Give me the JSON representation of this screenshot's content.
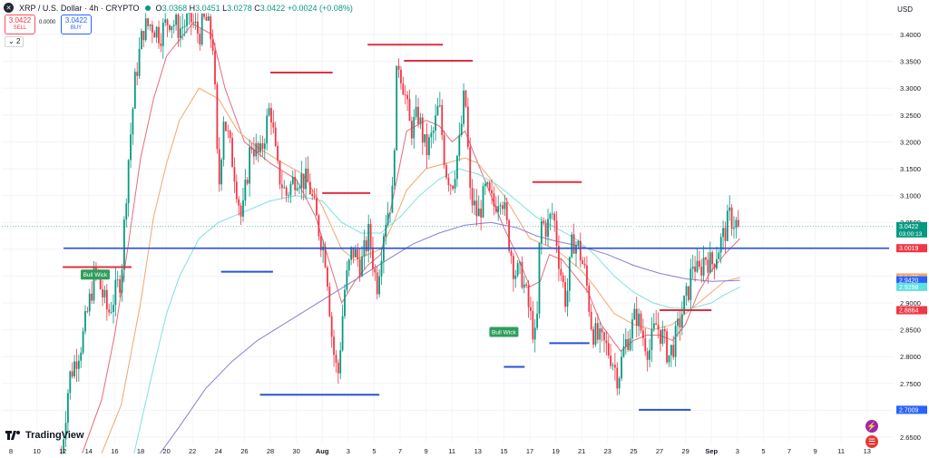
{
  "header": {
    "symbol_icon": "xrp-icon",
    "title": "XRP / U.S. Dollar · 4h · CRYPTO",
    "open_label": "O",
    "open": "3.0368",
    "high_label": "H",
    "high": "3.0451",
    "low_label": "L",
    "low": "3.0278",
    "close_label": "C",
    "close": "3.0422",
    "change": "+0.0024 (+0.08%)"
  },
  "trade": {
    "sell_price": "3.0422",
    "sell_label": "SELL",
    "spread": "0.0000",
    "buy_price": "3.0422",
    "buy_label": "BUY"
  },
  "indicators_toggle": "2",
  "currency": "USD",
  "logo_text": "TradingView",
  "colors": {
    "up": "#089981",
    "down": "#f23645",
    "resistance": "#e03040",
    "support": "#2a52d6",
    "ma_red": "#e56b7c",
    "ma_orange": "#f0a870",
    "ma_cyan": "#7fe0e0",
    "ma_purple": "#8c7fd0"
  },
  "chart_data": {
    "type": "candlestick",
    "symbol": "XRP / U.S. Dollar",
    "interval": "4h",
    "ylim": [
      2.62,
      3.44
    ],
    "y_ticks": [
      "3.4000",
      "3.3500",
      "3.3000",
      "3.2500",
      "3.2000",
      "3.1500",
      "3.1000",
      "3.0500",
      "3.0000",
      "2.9500",
      "2.9000",
      "2.8500",
      "2.8000",
      "2.7500",
      "2.7000",
      "2.6500"
    ],
    "x_ticks": [
      "8",
      "10",
      "12",
      "14",
      "16",
      "18",
      "20",
      "22",
      "24",
      "26",
      "28",
      "30",
      "Aug",
      "3",
      "5",
      "7",
      "9",
      "11",
      "13",
      "15",
      "17",
      "19",
      "21",
      "23",
      "25",
      "27",
      "29",
      "Sep",
      "3",
      "5",
      "7",
      "9",
      "11",
      "13"
    ],
    "price_labels": [
      {
        "value": "3.0422",
        "sub": "03:00:13",
        "color": "#089981",
        "price": 3.0422
      },
      {
        "value": "3.0019",
        "color": "#f23645",
        "price": 3.0019
      },
      {
        "value": "2.9475",
        "color": "#f0a870",
        "price": 2.9475
      },
      {
        "value": "2.9420",
        "color": "#2962ff",
        "price": 2.942
      },
      {
        "value": "2.9298",
        "color": "#5ee0e0",
        "price": 2.9298
      },
      {
        "value": "2.8864",
        "color": "#f23645",
        "price": 2.8864
      },
      {
        "value": "2.7009",
        "color": "#2962ff",
        "price": 2.7009
      }
    ],
    "annotations": [
      {
        "text": "Bull Wick",
        "day": 14.5,
        "price": 2.952
      },
      {
        "text": "Bull Wick",
        "day": 46.0,
        "price": 2.845
      }
    ],
    "horizontal_levels": [
      {
        "price": 3.0019,
        "from_day": 12,
        "to_day": 45.8,
        "kind": "support-main"
      },
      {
        "price": 2.9667,
        "from_day": 12,
        "to_day": 17.3,
        "kind": "resistance"
      },
      {
        "price": 3.329,
        "from_day": 28,
        "to_day": 32.8,
        "kind": "resistance"
      },
      {
        "price": 3.1045,
        "from_day": 32,
        "to_day": 35.7,
        "kind": "resistance"
      },
      {
        "price": 3.381,
        "from_day": 35.5,
        "to_day": 41.3,
        "kind": "resistance"
      },
      {
        "price": 3.351,
        "from_day": 38.3,
        "to_day": 43.6,
        "kind": "resistance"
      },
      {
        "price": 3.125,
        "from_day": 48.2,
        "to_day": 52.0,
        "kind": "resistance"
      },
      {
        "price": 2.8864,
        "from_day": 58.0,
        "to_day": 62.0,
        "kind": "resistance"
      },
      {
        "price": 2.958,
        "from_day": 24.2,
        "to_day": 28.2,
        "kind": "support"
      },
      {
        "price": 2.729,
        "from_day": 27.2,
        "to_day": 36.4,
        "kind": "support"
      },
      {
        "price": 2.781,
        "from_day": 46.0,
        "to_day": 47.6,
        "kind": "support"
      },
      {
        "price": 2.825,
        "from_day": 49.5,
        "to_day": 52.6,
        "kind": "support"
      },
      {
        "price": 2.7009,
        "from_day": 56.4,
        "to_day": 60.4,
        "kind": "support"
      }
    ],
    "close_path": [
      [
        11.9,
        2.62
      ],
      [
        12.5,
        2.76
      ],
      [
        13.5,
        2.83
      ],
      [
        14.5,
        2.96
      ],
      [
        15.5,
        2.88
      ],
      [
        16.5,
        2.95
      ],
      [
        17.0,
        3.15
      ],
      [
        17.6,
        3.32
      ],
      [
        18.2,
        3.41
      ],
      [
        18.8,
        3.42
      ],
      [
        19.5,
        3.4
      ],
      [
        20.2,
        3.43
      ],
      [
        21.0,
        3.41
      ],
      [
        21.8,
        3.43
      ],
      [
        22.5,
        3.4
      ],
      [
        23.0,
        3.43
      ],
      [
        23.6,
        3.38
      ],
      [
        24.0,
        3.1
      ],
      [
        24.4,
        3.25
      ],
      [
        25.2,
        3.15
      ],
      [
        25.8,
        3.05
      ],
      [
        26.5,
        3.2
      ],
      [
        27.2,
        3.17
      ],
      [
        28.0,
        3.27
      ],
      [
        28.5,
        3.15
      ],
      [
        29.2,
        3.1
      ],
      [
        30.0,
        3.14
      ],
      [
        31.0,
        3.12
      ],
      [
        31.6,
        3.05
      ],
      [
        32.3,
        2.98
      ],
      [
        32.8,
        2.82
      ],
      [
        33.2,
        2.76
      ],
      [
        33.7,
        2.92
      ],
      [
        34.3,
        3.0
      ],
      [
        35.0,
        2.97
      ],
      [
        35.6,
        3.03
      ],
      [
        36.2,
        2.93
      ],
      [
        36.8,
        3.05
      ],
      [
        37.4,
        3.1
      ],
      [
        37.8,
        3.36
      ],
      [
        38.3,
        3.3
      ],
      [
        38.8,
        3.22
      ],
      [
        39.4,
        3.25
      ],
      [
        40.0,
        3.18
      ],
      [
        40.6,
        3.22
      ],
      [
        41.0,
        3.27
      ],
      [
        41.5,
        3.15
      ],
      [
        42.0,
        3.12
      ],
      [
        42.6,
        3.2
      ],
      [
        43.0,
        3.3
      ],
      [
        43.4,
        3.1
      ],
      [
        44.0,
        3.06
      ],
      [
        44.6,
        3.11
      ],
      [
        45.2,
        3.08
      ],
      [
        45.8,
        3.11
      ],
      [
        46.3,
        3.03
      ],
      [
        46.8,
        2.96
      ],
      [
        47.4,
        2.95
      ],
      [
        48.0,
        2.88
      ],
      [
        48.5,
        2.82
      ],
      [
        48.8,
        3.05
      ],
      [
        49.3,
        3.04
      ],
      [
        49.8,
        3.07
      ],
      [
        50.3,
        2.97
      ],
      [
        50.8,
        2.9
      ],
      [
        51.3,
        3.02
      ],
      [
        51.8,
        3.0
      ],
      [
        52.3,
        2.95
      ],
      [
        52.8,
        2.85
      ],
      [
        53.3,
        2.83
      ],
      [
        53.8,
        2.82
      ],
      [
        54.3,
        2.8
      ],
      [
        54.8,
        2.76
      ],
      [
        55.3,
        2.82
      ],
      [
        55.8,
        2.85
      ],
      [
        56.2,
        2.88
      ],
      [
        56.7,
        2.84
      ],
      [
        57.2,
        2.81
      ],
      [
        57.7,
        2.86
      ],
      [
        58.2,
        2.84
      ],
      [
        58.7,
        2.8
      ],
      [
        59.2,
        2.83
      ],
      [
        59.7,
        2.88
      ],
      [
        60.2,
        2.92
      ],
      [
        60.6,
        2.98
      ],
      [
        61.0,
        2.95
      ],
      [
        61.5,
        2.99
      ],
      [
        62.0,
        2.97
      ],
      [
        62.5,
        3.0
      ],
      [
        63.0,
        3.03
      ],
      [
        63.4,
        3.06
      ],
      [
        63.8,
        3.05
      ],
      [
        64.2,
        3.0422
      ]
    ],
    "ma_series": [
      {
        "key": "ma_red",
        "points": [
          [
            13.5,
            2.62
          ],
          [
            15,
            2.72
          ],
          [
            16,
            2.84
          ],
          [
            17,
            3.0
          ],
          [
            18,
            3.17
          ],
          [
            19,
            3.28
          ],
          [
            20,
            3.36
          ],
          [
            22,
            3.42
          ],
          [
            23.5,
            3.4
          ],
          [
            24.5,
            3.3
          ],
          [
            26,
            3.2
          ],
          [
            28,
            3.16
          ],
          [
            30,
            3.13
          ],
          [
            31.5,
            3.06
          ],
          [
            32.5,
            2.98
          ],
          [
            33.5,
            2.9
          ],
          [
            34.5,
            2.94
          ],
          [
            35.5,
            2.97
          ],
          [
            36.5,
            2.99
          ],
          [
            37.5,
            3.1
          ],
          [
            38.5,
            3.22
          ],
          [
            40,
            3.24
          ],
          [
            41,
            3.23
          ],
          [
            42,
            3.2
          ],
          [
            43,
            3.22
          ],
          [
            44,
            3.16
          ],
          [
            45,
            3.1
          ],
          [
            46,
            3.04
          ],
          [
            47,
            2.99
          ],
          [
            48,
            2.93
          ],
          [
            48.8,
            2.94
          ],
          [
            49.5,
            2.99
          ],
          [
            50.5,
            2.98
          ],
          [
            51.5,
            2.95
          ],
          [
            52.5,
            2.92
          ],
          [
            53.5,
            2.86
          ],
          [
            55,
            2.81
          ],
          [
            56,
            2.83
          ],
          [
            57,
            2.84
          ],
          [
            58,
            2.84
          ],
          [
            59,
            2.83
          ],
          [
            60,
            2.86
          ],
          [
            61,
            2.92
          ],
          [
            62,
            2.96
          ],
          [
            63,
            2.99
          ],
          [
            64.2,
            3.02
          ]
        ]
      },
      {
        "key": "ma_orange",
        "points": [
          [
            15,
            2.62
          ],
          [
            16.5,
            2.71
          ],
          [
            18,
            2.9
          ],
          [
            19,
            3.06
          ],
          [
            20,
            3.16
          ],
          [
            21,
            3.24
          ],
          [
            22.5,
            3.3
          ],
          [
            24,
            3.28
          ],
          [
            25.5,
            3.22
          ],
          [
            27,
            3.19
          ],
          [
            29,
            3.16
          ],
          [
            30.5,
            3.14
          ],
          [
            32,
            3.08
          ],
          [
            33.5,
            3.0
          ],
          [
            34.5,
            2.98
          ],
          [
            35.5,
            2.99
          ],
          [
            36.5,
            3.0
          ],
          [
            37.5,
            3.05
          ],
          [
            38.5,
            3.11
          ],
          [
            40,
            3.15
          ],
          [
            41.5,
            3.16
          ],
          [
            43,
            3.17
          ],
          [
            44,
            3.16
          ],
          [
            45,
            3.13
          ],
          [
            46,
            3.1
          ],
          [
            47,
            3.06
          ],
          [
            48,
            3.02
          ],
          [
            49,
            3.01
          ],
          [
            50,
            3.0
          ],
          [
            51,
            2.98
          ],
          [
            52,
            2.96
          ],
          [
            53,
            2.93
          ],
          [
            54.5,
            2.88
          ],
          [
            56,
            2.86
          ],
          [
            57.5,
            2.85
          ],
          [
            59,
            2.86
          ],
          [
            60.5,
            2.89
          ],
          [
            62,
            2.92
          ],
          [
            63,
            2.94
          ],
          [
            64.2,
            2.9475
          ]
        ]
      },
      {
        "key": "ma_cyan",
        "points": [
          [
            17.5,
            2.62
          ],
          [
            19,
            2.78
          ],
          [
            20,
            2.88
          ],
          [
            21,
            2.95
          ],
          [
            22.5,
            3.02
          ],
          [
            24,
            3.05
          ],
          [
            26,
            3.07
          ],
          [
            28,
            3.09
          ],
          [
            30,
            3.1
          ],
          [
            32,
            3.09
          ],
          [
            33.5,
            3.05
          ],
          [
            35,
            3.03
          ],
          [
            36.5,
            3.03
          ],
          [
            38,
            3.06
          ],
          [
            39.5,
            3.1
          ],
          [
            41,
            3.13
          ],
          [
            42.5,
            3.15
          ],
          [
            44,
            3.14
          ],
          [
            45.5,
            3.12
          ],
          [
            47,
            3.09
          ],
          [
            48.5,
            3.06
          ],
          [
            50,
            3.04
          ],
          [
            51.5,
            3.02
          ],
          [
            53,
            2.99
          ],
          [
            54.5,
            2.95
          ],
          [
            56,
            2.92
          ],
          [
            57.5,
            2.9
          ],
          [
            59,
            2.89
          ],
          [
            60.5,
            2.89
          ],
          [
            62,
            2.9
          ],
          [
            63,
            2.915
          ],
          [
            64.2,
            2.9298
          ]
        ]
      },
      {
        "key": "ma_purple",
        "points": [
          [
            19.5,
            2.62
          ],
          [
            21,
            2.67
          ],
          [
            23,
            2.74
          ],
          [
            25,
            2.79
          ],
          [
            27,
            2.83
          ],
          [
            29,
            2.86
          ],
          [
            31,
            2.89
          ],
          [
            33,
            2.92
          ],
          [
            35,
            2.95
          ],
          [
            37,
            2.98
          ],
          [
            39,
            3.01
          ],
          [
            41,
            3.03
          ],
          [
            43,
            3.045
          ],
          [
            45,
            3.05
          ],
          [
            47,
            3.04
          ],
          [
            48.5,
            3.025
          ],
          [
            50,
            3.015
          ],
          [
            52,
            3.005
          ],
          [
            54,
            2.99
          ],
          [
            56,
            2.97
          ],
          [
            58,
            2.955
          ],
          [
            60,
            2.945
          ],
          [
            62,
            2.94
          ],
          [
            64.2,
            2.942
          ]
        ]
      }
    ],
    "current_price": 3.0422
  }
}
